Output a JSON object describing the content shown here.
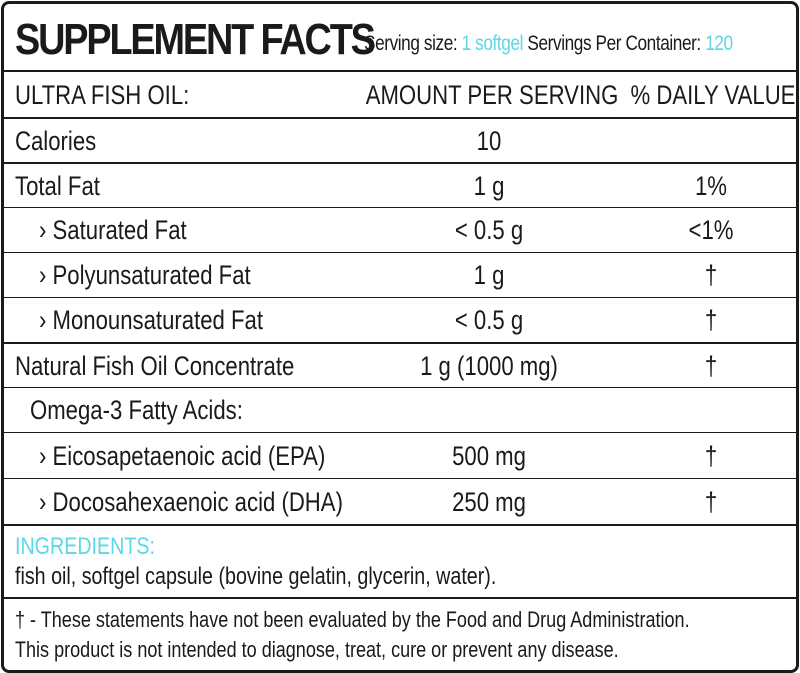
{
  "header": {
    "title": "SUPPLEMENT FACTS",
    "serving_size_label": "Serving size:",
    "serving_size_value": "1 softgel",
    "servings_label": "Servings Per Container:",
    "servings_value": "120"
  },
  "columns": {
    "name": "ULTRA FISH OIL:",
    "amount": "AMOUNT PER SERVING",
    "daily_value": "% DAILY VALUE"
  },
  "rows": [
    {
      "name": "Calories",
      "amount": "10",
      "dv": ""
    },
    {
      "name": "Total Fat",
      "amount": "1 g",
      "dv": "1%"
    },
    {
      "name": "› Saturated Fat",
      "amount": "< 0.5 g",
      "dv": "<1%"
    },
    {
      "name": "› Polyunsaturated Fat",
      "amount": "1 g",
      "dv": "†"
    },
    {
      "name": "› Monounsaturated Fat",
      "amount": "< 0.5 g",
      "dv": "†"
    },
    {
      "name": "Natural Fish Oil Concentrate",
      "amount": "1 g (1000 mg)",
      "dv": "†"
    },
    {
      "name": "Omega-3 Fatty Acids:",
      "amount": "",
      "dv": ""
    },
    {
      "name": "› Eicosapetaenoic acid (EPA)",
      "amount": "500 mg",
      "dv": "†"
    },
    {
      "name": "› Docosahexaenoic acid (DHA)",
      "amount": "250 mg",
      "dv": "†"
    }
  ],
  "ingredients": {
    "title": "INGREDIENTS:",
    "text": "fish oil, softgel capsule (bovine gelatin, glycerin, water)."
  },
  "footnote": {
    "line1": "† - These statements have not been evaluated by the Food and Drug Administration.",
    "line2": "This product is not intended to diagnose, treat, cure or prevent any disease."
  },
  "colors": {
    "accent": "#5ad8e6",
    "text": "#1a1a1a",
    "border": "#1a1a1a"
  }
}
